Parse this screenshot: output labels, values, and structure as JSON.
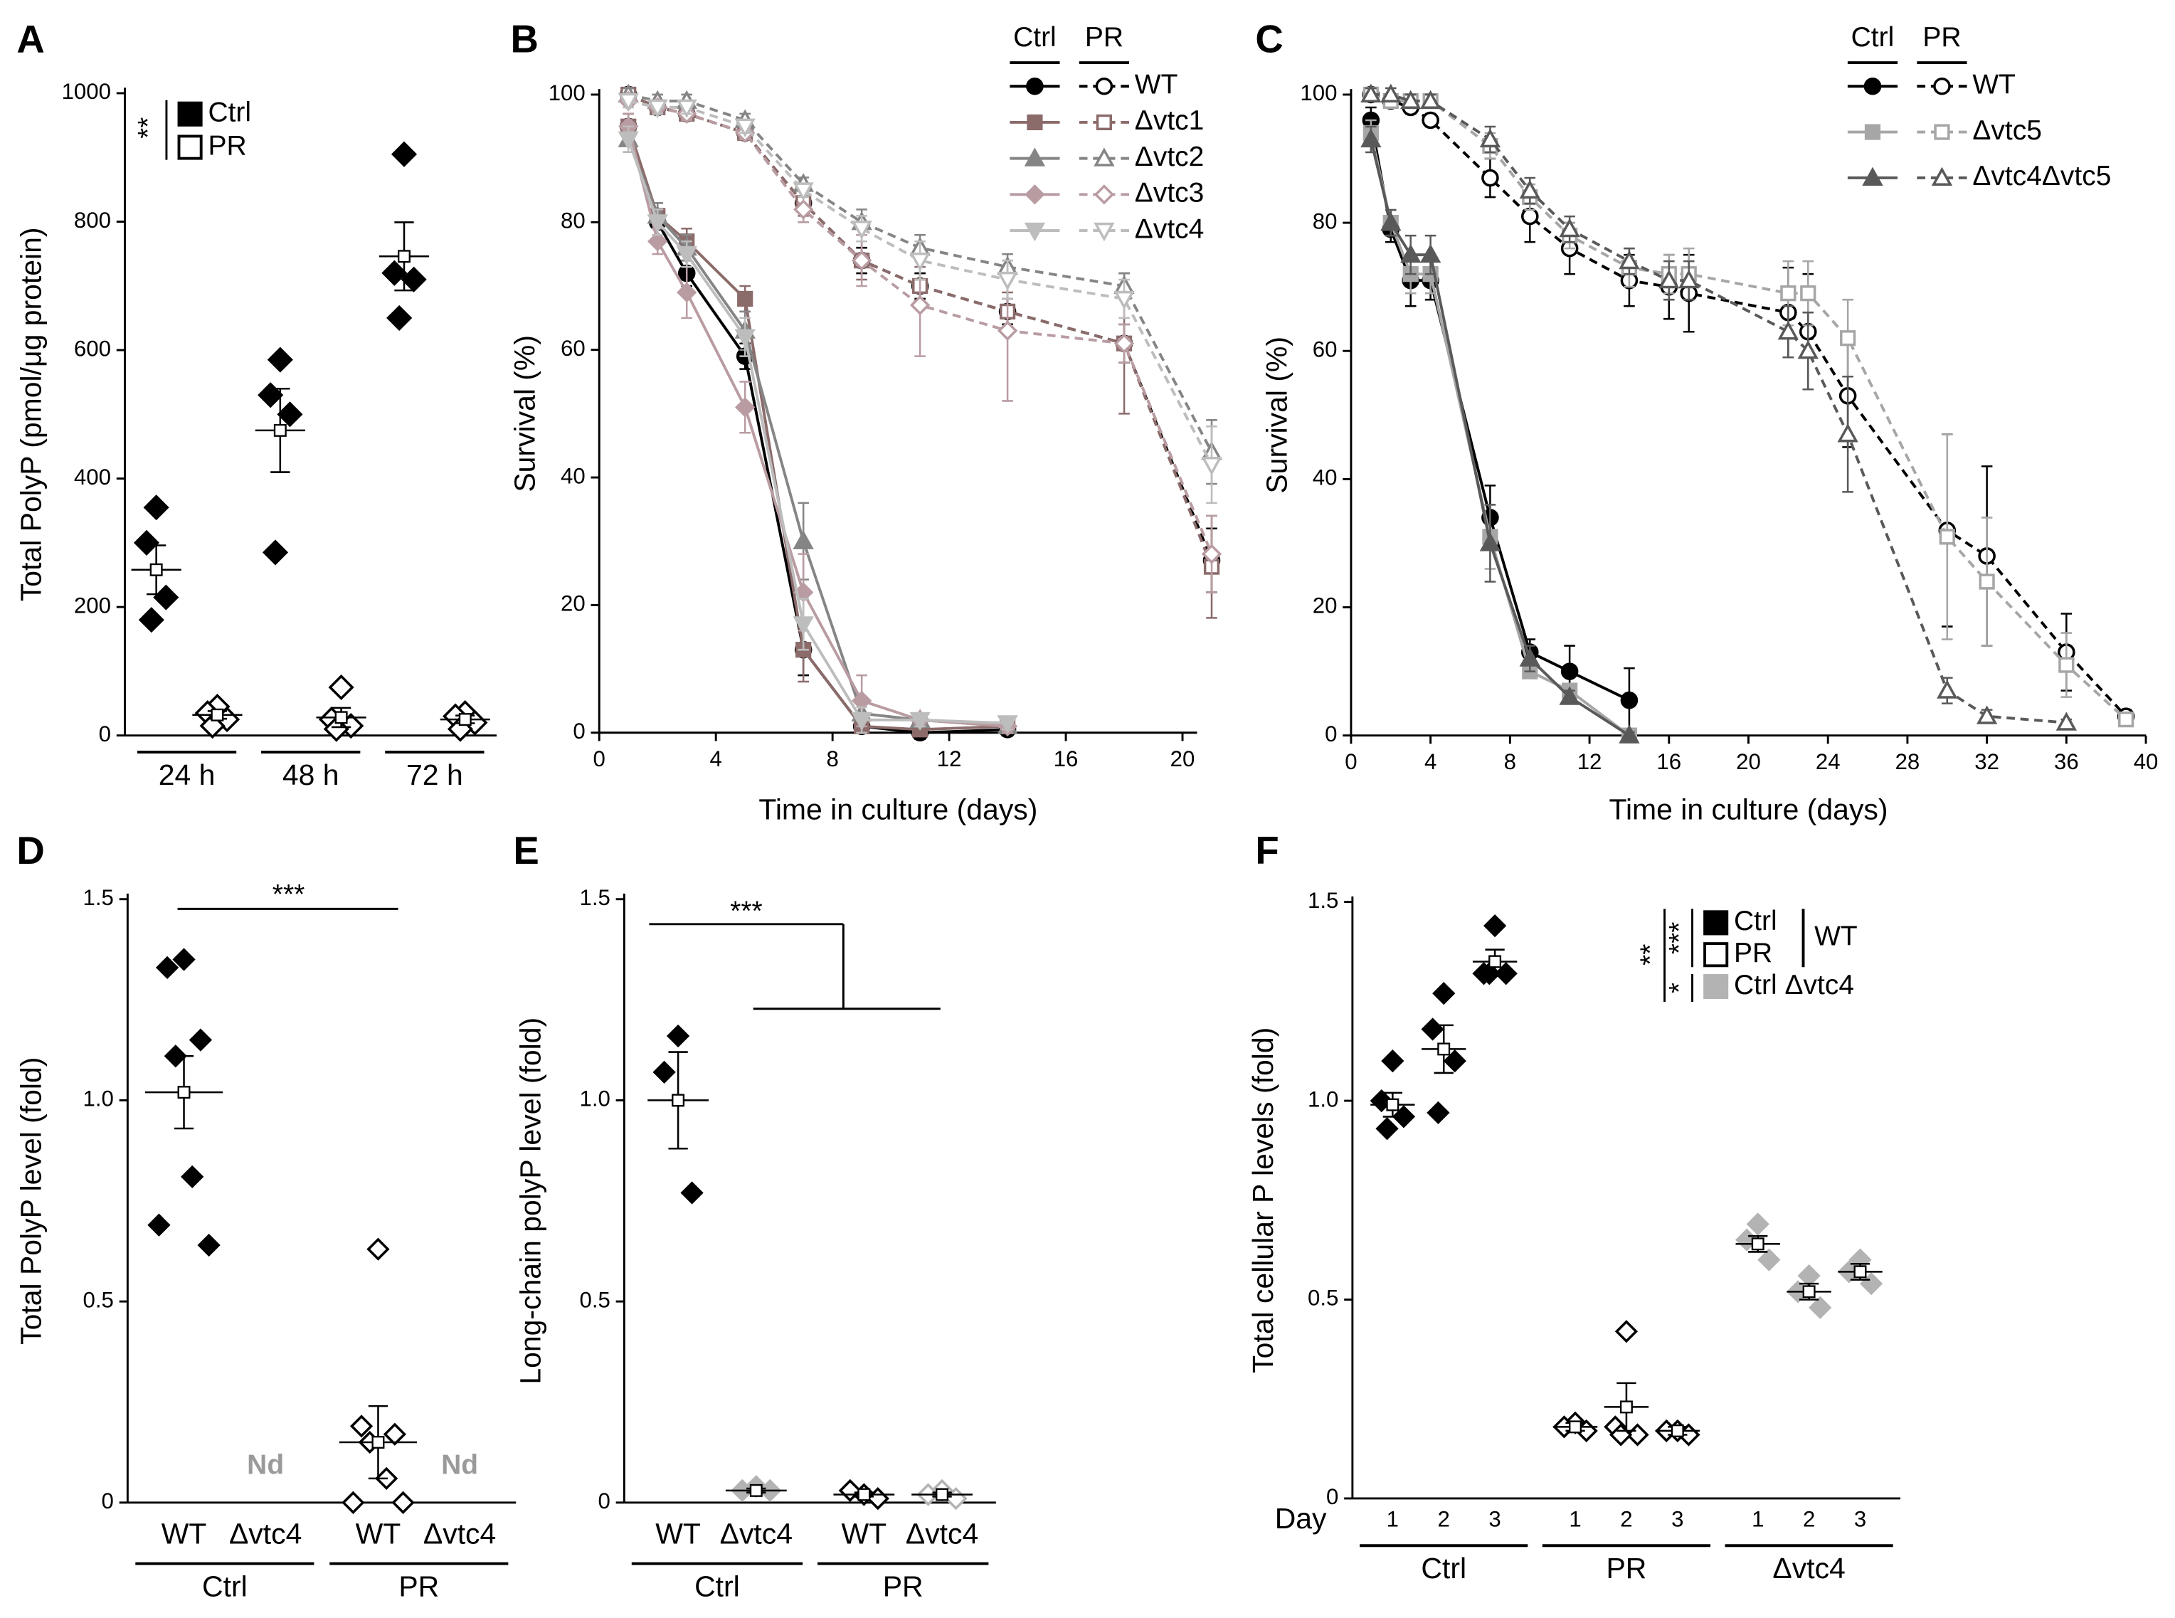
{
  "chart_data": [
    {
      "label": "A",
      "type": "dot",
      "ylabel": "Total PolyP (pmol/μg protein)",
      "ylim": [
        0,
        1000
      ],
      "yticks": [
        0,
        200,
        400,
        600,
        800,
        1000
      ],
      "categories": [
        "24 h",
        "48 h",
        "72 h"
      ],
      "significance": "**",
      "series": [
        {
          "name": "Ctrl",
          "color": "#000000",
          "filled": true,
          "points": [
            [
              355,
              300,
              215,
              180
            ],
            [
              585,
              530,
              500,
              285
            ],
            [
              905,
              720,
              710,
              650
            ]
          ],
          "mean": [
            258,
            475,
            746
          ],
          "sem": [
            38,
            65,
            53
          ]
        },
        {
          "name": "PR",
          "color": "#000000",
          "filled": false,
          "points": [
            [
              45,
              35,
              25,
              15
            ],
            [
              75,
              25,
              15,
              10
            ],
            [
              35,
              30,
              20,
              10
            ]
          ],
          "mean": [
            32,
            28,
            25
          ],
          "sem": [
            6,
            15,
            6
          ]
        }
      ]
    },
    {
      "label": "B",
      "type": "line",
      "ylabel": "Survival (%)",
      "xlabel": "Time in culture (days)",
      "xlim": [
        0,
        20.5
      ],
      "xticks": [
        0,
        4,
        8,
        12,
        16,
        20
      ],
      "ylim": [
        0,
        100
      ],
      "yticks": [
        0,
        20,
        40,
        60,
        80,
        100
      ],
      "legend_headers": [
        "Ctrl",
        "PR"
      ],
      "x_ctrl": [
        1,
        2,
        3,
        5,
        7,
        9,
        11,
        14
      ],
      "x_pr": [
        1,
        2,
        3,
        5,
        7,
        9,
        11,
        14,
        18,
        21
      ],
      "series": [
        {
          "name": "WT",
          "color": "#000000",
          "marker": "circle",
          "ctrl": [
            95,
            80,
            72,
            59,
            13,
            1,
            0,
            0.5
          ],
          "ctrl_err": [
            2,
            2,
            2,
            2,
            4,
            1,
            1,
            1
          ],
          "pr": [
            100,
            98,
            97,
            94,
            83,
            74,
            70,
            66,
            61,
            27
          ],
          "pr_err": [
            1,
            1,
            1,
            1,
            1,
            2,
            2,
            2,
            3,
            5
          ]
        },
        {
          "name": "Δvtc1",
          "color": "#8c6b6b",
          "marker": "square",
          "ctrl": [
            95,
            81,
            77,
            68,
            13,
            1,
            0.5,
            1
          ],
          "ctrl_err": [
            2,
            2,
            2,
            2,
            5,
            1,
            1,
            1
          ],
          "pr": [
            100,
            98,
            97,
            94,
            83,
            74,
            70,
            66,
            61,
            26
          ],
          "pr_err": [
            1,
            1,
            1,
            1,
            2,
            3,
            3,
            3,
            11,
            8
          ]
        },
        {
          "name": "Δvtc2",
          "color": "#858585",
          "marker": "triangle",
          "ctrl": [
            93,
            81,
            76,
            63,
            30,
            3,
            2,
            1
          ],
          "ctrl_err": [
            2,
            2,
            2,
            3,
            6,
            2,
            1,
            1
          ],
          "pr": [
            100,
            99,
            99,
            96,
            86,
            80,
            76,
            73,
            70,
            44
          ],
          "pr_err": [
            1,
            1,
            1,
            1,
            1,
            2,
            2,
            2,
            2,
            5
          ]
        },
        {
          "name": "Δvtc3",
          "color": "#b99ca2",
          "marker": "diamond",
          "ctrl": [
            95,
            77,
            69,
            51,
            22,
            5,
            2,
            1
          ],
          "ctrl_err": [
            2,
            2,
            4,
            4,
            6,
            4,
            1,
            1
          ],
          "pr": [
            99,
            98,
            97,
            94,
            82,
            74,
            67,
            63,
            61,
            28
          ],
          "pr_err": [
            1,
            1,
            1,
            1,
            2,
            4,
            8,
            11,
            3,
            6
          ]
        },
        {
          "name": "Δvtc4",
          "color": "#bdbdbd",
          "marker": "triangle-down",
          "ctrl": [
            93,
            80,
            75,
            62,
            17,
            2,
            2,
            1.5
          ],
          "ctrl_err": [
            2,
            2,
            2,
            3,
            4,
            2,
            1,
            1
          ],
          "pr": [
            99,
            98,
            98,
            95,
            85,
            79,
            74,
            71,
            68,
            42
          ],
          "pr_err": [
            1,
            1,
            1,
            1,
            1,
            2,
            3,
            3,
            3,
            6
          ]
        }
      ]
    },
    {
      "label": "C",
      "type": "line",
      "ylabel": "Survival (%)",
      "xlabel": "Time in culture (days)",
      "xlim": [
        0,
        40
      ],
      "xticks": [
        0,
        4,
        8,
        12,
        16,
        20,
        24,
        28,
        32,
        36,
        40
      ],
      "ylim": [
        0,
        100
      ],
      "yticks": [
        0,
        20,
        40,
        60,
        80,
        100
      ],
      "legend_headers": [
        "Ctrl",
        "PR"
      ],
      "x_ctrl": [
        1,
        2,
        3,
        4,
        7,
        9,
        11,
        14
      ],
      "x_pr": [
        1,
        2,
        3,
        4,
        7,
        9,
        11,
        14,
        16,
        17,
        22,
        23,
        25,
        30,
        32,
        36,
        39
      ],
      "series": [
        {
          "name": "WT",
          "color": "#000000",
          "marker": "circle",
          "ctrl": [
            96,
            79,
            71,
            71,
            34,
            13,
            10,
            5.5
          ],
          "ctrl_err": [
            2,
            2,
            4,
            3,
            5,
            2,
            4,
            5
          ],
          "pr": [
            100,
            99,
            98,
            96,
            87,
            81,
            76,
            71,
            70,
            69,
            66,
            63,
            53,
            32,
            28,
            13,
            3
          ],
          "pr_err": [
            1,
            1,
            1,
            1,
            3,
            4,
            4,
            4,
            5,
            6,
            7,
            9,
            8,
            15,
            14,
            6,
            1
          ]
        },
        {
          "name": "Δvtc5",
          "color": "#a6a6a6",
          "marker": "square",
          "ctrl": [
            94,
            80,
            72,
            72,
            31,
            10,
            7,
            0
          ],
          "ctrl_err": [
            2,
            2,
            3,
            3,
            5,
            1,
            1,
            0.5
          ],
          "pr": [
            100,
            99,
            99,
            99,
            92,
            84,
            78,
            73,
            72,
            72,
            69,
            69,
            62,
            31,
            24,
            11,
            2.5
          ],
          "pr_err": [
            1,
            1,
            1,
            1,
            2,
            2,
            2,
            3,
            3,
            4,
            5,
            5,
            6,
            16,
            10,
            5,
            1
          ]
        },
        {
          "name": "Δvtc4Δvtc5",
          "color": "#595959",
          "marker": "triangle",
          "ctrl": [
            93,
            80,
            75,
            75,
            30,
            12,
            6,
            0
          ],
          "ctrl_err": [
            2,
            2,
            3,
            3,
            6,
            2,
            1,
            0.5
          ],
          "pr": [
            100,
            100,
            99,
            99,
            93,
            85,
            79,
            74,
            71,
            71,
            63,
            60,
            47,
            7,
            3,
            2,
            null
          ],
          "pr_err": [
            1,
            1,
            1,
            1,
            2,
            2,
            2,
            2,
            3,
            3,
            4,
            6,
            9,
            2,
            1,
            0.5,
            null
          ]
        }
      ]
    },
    {
      "label": "D",
      "type": "dot",
      "ylabel": "Total PolyP level (fold)",
      "ylim": [
        0,
        1.5
      ],
      "yticks": [
        0,
        0.5,
        {
          "value": 1,
          "label": "1.0"
        },
        1.5
      ],
      "categories": [
        "WT",
        "Δvtc4",
        "WT",
        "Δvtc4"
      ],
      "groups": [
        "Ctrl",
        "PR"
      ],
      "significance": "***",
      "series": [
        {
          "color": "#000000",
          "filled": true,
          "points": [
            [
              1.35,
              1.33,
              1.15,
              1.11,
              0.81,
              0.69,
              0.64
            ],
            "Nd",
            null,
            null
          ],
          "mean": [
            1.02,
            null,
            null,
            null
          ],
          "sem": [
            0.09,
            null,
            null,
            null
          ]
        },
        {
          "color": "#000000",
          "filled": false,
          "points": [
            null,
            null,
            [
              0.63,
              0.19,
              0.17,
              0.15,
              0.06,
              0,
              0
            ],
            "Nd"
          ],
          "mean": [
            null,
            null,
            0.15,
            null
          ],
          "sem": [
            null,
            null,
            0.09,
            null
          ]
        }
      ]
    },
    {
      "label": "E",
      "type": "dot",
      "ylabel": "Long-chain polyP level (fold)",
      "ylim": [
        0,
        1.5
      ],
      "yticks": [
        0,
        0.5,
        {
          "value": 1,
          "label": "1.0"
        },
        1.5
      ],
      "categories": [
        "WT",
        "Δvtc4",
        "WT",
        "Δvtc4"
      ],
      "groups": [
        "Ctrl",
        "PR"
      ],
      "significance": "***",
      "series": [
        {
          "color": "#000000",
          "filled": true,
          "points": [
            [
              1.16,
              1.07,
              0.77
            ],
            null,
            null,
            null
          ],
          "mean": [
            1.0,
            null,
            null,
            null
          ],
          "sem": [
            0.12,
            null,
            null,
            null
          ]
        },
        {
          "color": "#b3b3b3",
          "filled": true,
          "points": [
            null,
            [
              0.04,
              0.03,
              0.03
            ],
            null,
            null
          ],
          "mean": [
            null,
            0.03,
            null,
            null
          ],
          "sem": [
            null,
            0.005,
            null,
            null
          ]
        },
        {
          "color": "#000000",
          "filled": false,
          "points": [
            null,
            null,
            [
              0.02,
              0.03,
              0.01
            ],
            null
          ],
          "mean": [
            null,
            null,
            0.02,
            null
          ],
          "sem": [
            null,
            null,
            0.005,
            null
          ]
        },
        {
          "color": "#b3b3b3",
          "filled": false,
          "points": [
            null,
            null,
            null,
            [
              0.03,
              0.02,
              0.01
            ]
          ],
          "mean": [
            null,
            null,
            null,
            0.02
          ],
          "sem": [
            null,
            null,
            null,
            0.005
          ]
        }
      ]
    },
    {
      "label": "F",
      "type": "dot",
      "ylabel": "Total cellular P levels (fold)",
      "xlabel": "Day",
      "ylim": [
        0,
        1.5
      ],
      "yticks": [
        0,
        0.5,
        {
          "value": 1,
          "label": "1.0"
        },
        1.5
      ],
      "categories": [
        "1",
        "2",
        "3",
        "1",
        "2",
        "3",
        "1",
        "2",
        "3"
      ],
      "groups": [
        "Ctrl",
        "PR",
        "Δvtc4"
      ],
      "significance": [
        "***",
        "**",
        "*"
      ],
      "legend_group": "WT",
      "series": [
        {
          "name": "Ctrl",
          "color": "#000000",
          "filled": true,
          "points": [
            [
              1.1,
              1.0,
              0.96,
              0.93
            ],
            [
              1.27,
              1.18,
              1.1,
              0.97
            ],
            [
              1.44,
              1.32,
              1.32,
              1.32
            ],
            null,
            null,
            null,
            null,
            null,
            null
          ],
          "mean": [
            0.99,
            1.13,
            1.35,
            null,
            null,
            null,
            null,
            null,
            null
          ],
          "sem": [
            0.03,
            0.06,
            0.03,
            null,
            null,
            null,
            null,
            null,
            null
          ]
        },
        {
          "name": "PR",
          "color": "#000000",
          "filled": false,
          "points": [
            null,
            null,
            null,
            [
              0.19,
              0.18,
              0.17
            ],
            [
              0.42,
              0.18,
              0.16,
              0.16
            ],
            [
              0.17,
              0.17,
              0.16
            ],
            null,
            null,
            null
          ],
          "mean": [
            null,
            null,
            null,
            0.18,
            0.23,
            0.17,
            null,
            null,
            null
          ],
          "sem": [
            null,
            null,
            null,
            0.01,
            0.06,
            0.01,
            null,
            null,
            null
          ]
        },
        {
          "name": "Ctrl Δvtc4",
          "color": "#b3b3b3",
          "filled": true,
          "points": [
            null,
            null,
            null,
            null,
            null,
            null,
            [
              0.69,
              0.65,
              0.6
            ],
            [
              0.56,
              0.52,
              0.48
            ],
            [
              0.6,
              0.57,
              0.54
            ]
          ],
          "mean": [
            null,
            null,
            null,
            null,
            null,
            null,
            0.64,
            0.52,
            0.57
          ],
          "sem": [
            null,
            null,
            null,
            null,
            null,
            null,
            0.02,
            0.02,
            0.02
          ]
        }
      ]
    }
  ]
}
